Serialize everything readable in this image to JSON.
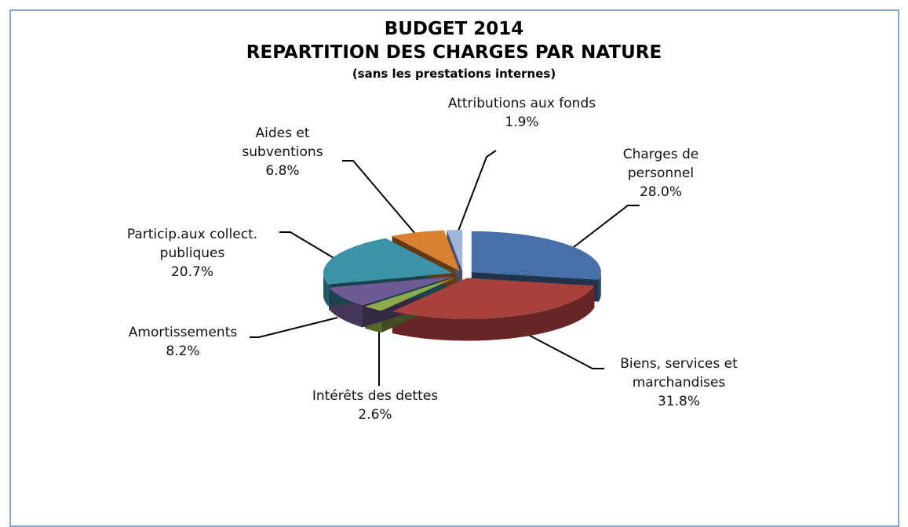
{
  "chart_data": {
    "type": "pie3d",
    "title_lines": [
      "BUDGET 2014",
      "REPARTITION DES CHARGES PAR NATURE"
    ],
    "subtitle": "(sans les prestations internes)",
    "categories": [
      "Charges de personnel",
      "Biens, services et marchandises",
      "Intérêts des dettes",
      "Amortissements",
      "Particip.aux collect. publiques",
      "Aides et subventions",
      "Attributions aux fonds"
    ],
    "values": [
      28.0,
      31.8,
      2.6,
      8.2,
      20.7,
      6.8,
      1.9
    ],
    "value_labels": [
      "28.0%",
      "31.8%",
      "2.6%",
      "8.2%",
      "20.7%",
      "6.8%",
      "1.9%"
    ],
    "colors": [
      "#4670a8",
      "#a8403d",
      "#8eab4b",
      "#6f5a95",
      "#3b93aa",
      "#d9812f",
      "#9fb5db"
    ]
  }
}
